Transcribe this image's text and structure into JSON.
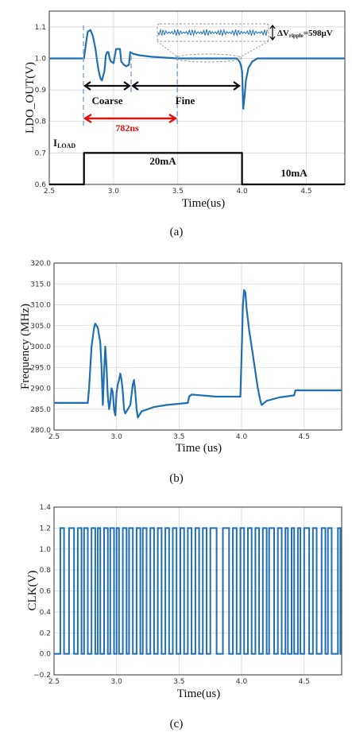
{
  "chart_data": [
    {
      "type": "line",
      "caption": "(a)",
      "xlabel": "Time(us)",
      "ylabel": "LDO_OUT(V)",
      "xlim": [
        2.5,
        4.8
      ],
      "ylim": [
        0.6,
        1.15
      ],
      "xticks": [
        "2.5",
        "3.0",
        "3.5",
        "4.0",
        "4.5"
      ],
      "yticks": [
        "0.6",
        "0.7",
        "0.8",
        "0.9",
        "1.0",
        "1.1"
      ],
      "grid": true,
      "color": "#1f6fb2",
      "series": [
        {
          "x": [
            2.5,
            2.77,
            2.79,
            2.8,
            2.82,
            2.84,
            2.86,
            2.87,
            2.88,
            2.89,
            2.9,
            2.91,
            2.93,
            2.94,
            2.95,
            2.96,
            2.97,
            2.98,
            3.0,
            3.02,
            3.04,
            3.05,
            3.06,
            3.08,
            3.1,
            3.12,
            3.13,
            3.15,
            3.2,
            3.3,
            3.5,
            3.7,
            3.9,
            3.96,
            3.98,
            3.99,
            4.0,
            4.01,
            4.02,
            4.03,
            4.05,
            4.08,
            4.12,
            4.2,
            4.3,
            4.5,
            4.8
          ],
          "y": [
            1.0,
            1.0,
            1.06,
            1.085,
            1.09,
            1.07,
            1.03,
            1.0,
            0.97,
            0.95,
            0.935,
            0.93,
            0.96,
            1.01,
            1.02,
            1.02,
            1.0,
            0.99,
            0.985,
            1.03,
            1.03,
            1.03,
            0.99,
            0.98,
            0.975,
            0.98,
            1.02,
            1.015,
            1.01,
            1.005,
            1.0,
            1.0,
            1.0,
            1.0,
            0.99,
            0.98,
            0.96,
            0.84,
            0.88,
            0.93,
            0.97,
            0.99,
            1.0,
            1.0,
            1.0,
            1.0,
            1.0
          ]
        },
        {
          "name": "I_LOAD",
          "color": "#000000",
          "x": [
            2.5,
            2.77,
            2.77,
            4.0,
            4.0,
            4.8
          ],
          "y": [
            0.6,
            0.6,
            0.7,
            0.7,
            0.6,
            0.6
          ]
        }
      ],
      "annotations": {
        "iload_main": "I",
        "iload_sub": "LOAD",
        "load_high": "20mA",
        "load_low": "10mA",
        "coarse": "Coarse",
        "fine": "Fine",
        "settle": "782ns",
        "ripple_delta": "ΔV",
        "ripple_sub": "ripple",
        "ripple_value": "=598μV"
      }
    },
    {
      "type": "line",
      "caption": "(b)",
      "xlabel": "Time (us)",
      "ylabel": "Frequency (MHz)",
      "xlim": [
        2.5,
        4.8
      ],
      "ylim": [
        280.0,
        320.0
      ],
      "xticks": [
        "2.5",
        "3.0",
        "3.5",
        "4.0",
        "4.5"
      ],
      "yticks": [
        "280.0",
        "285.0",
        "290.0",
        "295.0",
        "300.0",
        "305.0",
        "310.0",
        "315.0",
        "320.0"
      ],
      "grid": true,
      "color": "#1f6fb2",
      "series": [
        {
          "x": [
            2.5,
            2.77,
            2.78,
            2.8,
            2.82,
            2.83,
            2.85,
            2.87,
            2.88,
            2.89,
            2.9,
            2.91,
            2.92,
            2.93,
            2.94,
            2.95,
            2.96,
            2.97,
            2.98,
            2.99,
            3.0,
            3.01,
            3.02,
            3.03,
            3.04,
            3.05,
            3.06,
            3.07,
            3.09,
            3.11,
            3.13,
            3.14,
            3.15,
            3.16,
            3.17,
            3.2,
            3.3,
            3.4,
            3.57,
            3.58,
            3.6,
            3.8,
            3.99,
            4.0,
            4.01,
            4.02,
            4.03,
            4.04,
            4.06,
            4.08,
            4.1,
            4.13,
            4.15,
            4.16,
            4.2,
            4.3,
            4.42,
            4.43,
            4.6,
            4.8
          ],
          "y": [
            286.5,
            286.5,
            290.0,
            300.0,
            304.5,
            305.5,
            304.5,
            301.0,
            295.0,
            286.0,
            294.0,
            300.0,
            295.0,
            288.0,
            285.0,
            287.0,
            290.0,
            289.0,
            285.0,
            283.5,
            289.0,
            291.0,
            292.0,
            293.5,
            292.0,
            289.0,
            285.0,
            284.0,
            285.0,
            286.0,
            291.0,
            292.0,
            289.0,
            285.0,
            283.0,
            284.5,
            285.5,
            286.0,
            286.5,
            288.0,
            288.5,
            288.0,
            288.0,
            298.0,
            310.0,
            313.5,
            313.0,
            309.0,
            304.0,
            300.0,
            296.0,
            290.0,
            287.0,
            286.0,
            287.0,
            287.8,
            288.3,
            289.5,
            289.5,
            289.5
          ]
        }
      ]
    },
    {
      "type": "line",
      "caption": "(c)",
      "xlabel": "Time(us)",
      "ylabel": "CLK(V)",
      "xlim": [
        2.5,
        4.8
      ],
      "ylim": [
        -0.2,
        1.4
      ],
      "xticks": [
        "2.5",
        "3.0",
        "3.5",
        "4.0",
        "4.5"
      ],
      "yticks": [
        "−0.2",
        "0.0",
        "0.2",
        "0.4",
        "0.6",
        "0.8",
        "1.0",
        "1.2",
        "1.4"
      ],
      "grid": true,
      "color": "#1f6fb2",
      "clock_levels": [
        0.0,
        1.2
      ],
      "edges_us": [
        2.55,
        2.58,
        2.62,
        2.66,
        2.69,
        2.72,
        2.74,
        2.77,
        2.8,
        2.83,
        2.85,
        2.87,
        2.9,
        2.93,
        2.95,
        2.98,
        3.0,
        3.02,
        3.05,
        3.08,
        3.1,
        3.13,
        3.16,
        3.19,
        3.21,
        3.24,
        3.27,
        3.3,
        3.33,
        3.36,
        3.39,
        3.42,
        3.45,
        3.48,
        3.51,
        3.54,
        3.57,
        3.6,
        3.63,
        3.66,
        3.69,
        3.72,
        3.75,
        3.8,
        3.85,
        3.9,
        3.93,
        3.96,
        3.99,
        4.02,
        4.05,
        4.08,
        4.11,
        4.14,
        4.17,
        4.2,
        4.22,
        4.26,
        4.29,
        4.32,
        4.35,
        4.37,
        4.4,
        4.42,
        4.45,
        4.47,
        4.5,
        4.54,
        4.57,
        4.6,
        4.64,
        4.67,
        4.69,
        4.72,
        4.77,
        4.79
      ]
    }
  ]
}
